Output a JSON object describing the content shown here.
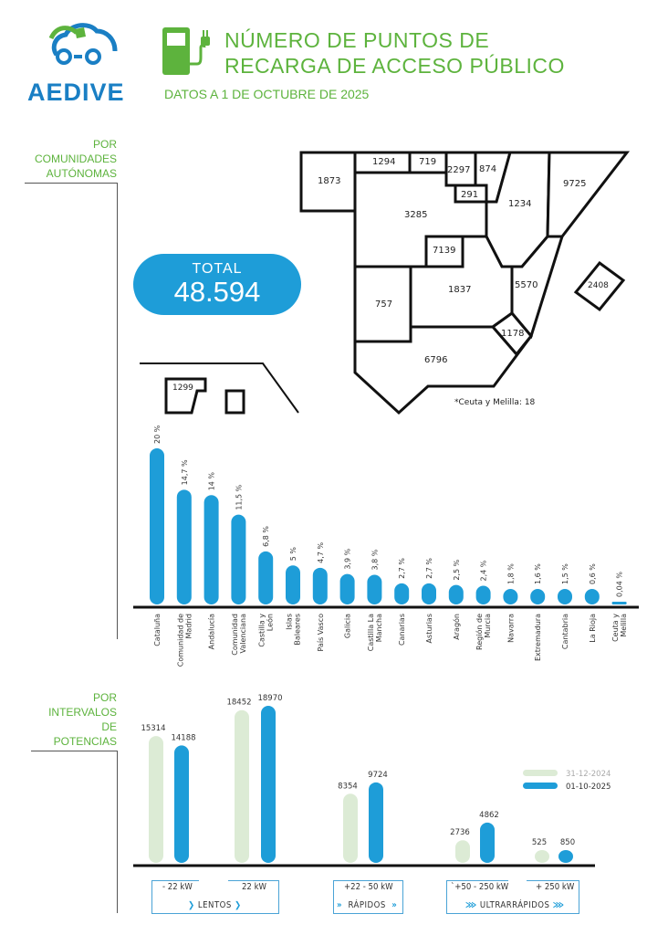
{
  "header": {
    "logo_text": "AEDIVE",
    "title_line1": "NÚMERO DE PUNTOS DE",
    "title_line2": "RECARGA DE ACCESO PÚBLICO",
    "subtitle": "DATOS A 1 DE OCTUBRE DE 2025"
  },
  "sections": {
    "regions": [
      "POR",
      "COMUNIDADES",
      "AUTÓNOMAS"
    ],
    "power": [
      "POR",
      "INTERVALOS",
      "DE",
      "POTENCIAS"
    ]
  },
  "total": {
    "label": "TOTAL",
    "value": "48.594"
  },
  "map": {
    "values": {
      "galicia": "1873",
      "asturias": "1294",
      "cantabria": "719",
      "pais_vasco": "2297",
      "navarra": "874",
      "la_rioja": "291",
      "castilla_leon": "3285",
      "madrid": "7139",
      "aragon": "1234",
      "cataluna": "9725",
      "extremadura": "757",
      "castilla_la_mancha": "1837",
      "valencia": "5570",
      "murcia": "1178",
      "andalucia": "6796",
      "baleares": "2408",
      "canarias": "1299"
    },
    "note": "*Ceuta y Melilla: 18"
  },
  "colors": {
    "blue": "#1e9dd8",
    "light": "#dcebd5",
    "green": "#5db33d"
  },
  "chart_data": [
    {
      "type": "bar",
      "title": "",
      "xlabel": "",
      "ylabel": "%",
      "ylim": [
        0,
        20
      ],
      "categories": [
        "Cataluña",
        "Comunidad de Madrid",
        "Andalucía",
        "Comunidad Valenciana",
        "Castilla y León",
        "Islas Baleares",
        "País Vasco",
        "Galicia",
        "Castilla La Mancha",
        "Canarias",
        "Asturias",
        "Aragón",
        "Región de Murcia",
        "Navarra",
        "Extremadura",
        "Cantabria",
        "La Rioja",
        "Ceuta y Melilla"
      ],
      "values": [
        20,
        14.7,
        14,
        11.5,
        6.8,
        5,
        4.7,
        3.9,
        3.8,
        2.7,
        2.7,
        2.5,
        2.4,
        1.8,
        1.6,
        1.5,
        0.6,
        0.04
      ],
      "labels": [
        "20 %",
        "14,7 %",
        "14 %",
        "11,5 %",
        "6,8 %",
        "5 %",
        "4,7 %",
        "3,9 %",
        "3,8 %",
        "2,7 %",
        "2,7 %",
        "2,5 %",
        "2,4 %",
        "1,8 %",
        "1,6 %",
        "1,5 %",
        "0,6 %",
        "0,04 %"
      ]
    },
    {
      "type": "bar",
      "title": "",
      "xlabel": "",
      "ylabel": "",
      "ylim": [
        0,
        18970
      ],
      "categories": [
        "- 22 kW",
        "22 kW",
        "+22 - 50 kW",
        "`+50 - 250 kW",
        "+ 250 kW"
      ],
      "groups": [
        "LENTOS",
        "RÁPIDOS",
        "ULTRARRÁPIDOS"
      ],
      "legend_position": "right",
      "series": [
        {
          "name": "31-12-2024",
          "values": [
            15314,
            18452,
            8354,
            2736,
            525
          ]
        },
        {
          "name": "01-10-2025",
          "values": [
            14188,
            18970,
            9724,
            4862,
            850
          ]
        }
      ]
    }
  ]
}
